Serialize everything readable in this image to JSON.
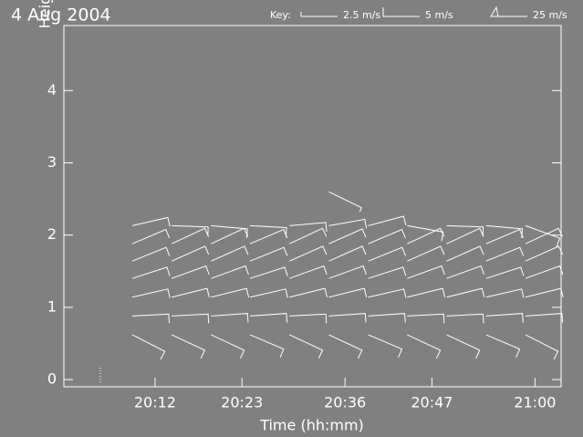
{
  "chart_data": {
    "type": "wind-barb",
    "title": "4 Aug 2004",
    "key_label": "Key:",
    "key": [
      {
        "label": "2.5 m/s",
        "speed": 2.5
      },
      {
        "label": "5 m/s",
        "speed": 5
      },
      {
        "label": "25 m/s",
        "speed": 25
      }
    ],
    "x_label": "Time (hh:mm)",
    "y_label": "Height (km ASL)",
    "xlim": [
      20.008,
      21.055
    ],
    "ylim": [
      -0.1,
      4.9
    ],
    "xticks": [
      {
        "value": 20.2,
        "label": "20:12"
      },
      {
        "value": 20.383,
        "label": "20:23"
      },
      {
        "value": 20.6,
        "label": "20:36"
      },
      {
        "value": 20.783,
        "label": "20:47"
      },
      {
        "value": 21.0,
        "label": "21:00"
      }
    ],
    "yticks": [
      0,
      1,
      2,
      3,
      4
    ],
    "color": "#ffffff",
    "x": [
      20.152,
      20.235,
      20.318,
      20.4,
      20.483,
      20.566,
      20.649,
      20.731,
      20.814,
      20.897,
      20.98
    ],
    "series": [
      {
        "height": 0.62,
        "direction": [
          117,
          115,
          115,
          113,
          115,
          115,
          113,
          115,
          115,
          113,
          117
        ],
        "speed": [
          5,
          5,
          5,
          5,
          5,
          5,
          5,
          5,
          5,
          5,
          5
        ]
      },
      {
        "height": 0.88,
        "direction": [
          87,
          87,
          86,
          86,
          87,
          86,
          86,
          87,
          87,
          86,
          86
        ],
        "speed": [
          5,
          5,
          5,
          5,
          5,
          5,
          5,
          5,
          5,
          5,
          5
        ]
      },
      {
        "height": 1.14,
        "direction": [
          77,
          76,
          76,
          77,
          76,
          76,
          77,
          76,
          76,
          77,
          76
        ],
        "speed": [
          5,
          5,
          5,
          5,
          5,
          5,
          5,
          5,
          5,
          5,
          5
        ]
      },
      {
        "height": 1.4,
        "direction": [
          72,
          70,
          70,
          72,
          70,
          70,
          72,
          70,
          70,
          72,
          70
        ],
        "speed": [
          5,
          5,
          5,
          5,
          5,
          5,
          5,
          5,
          5,
          5,
          5
        ]
      },
      {
        "height": 1.64,
        "direction": [
          68,
          66,
          66,
          68,
          66,
          66,
          68,
          66,
          66,
          68,
          66
        ],
        "speed": [
          5,
          5,
          5,
          5,
          5,
          5,
          5,
          5,
          5,
          5,
          5
        ]
      },
      {
        "height": 1.88,
        "direction": [
          67,
          65,
          65,
          67,
          65,
          66,
          67,
          65,
          65,
          67,
          65
        ],
        "speed": [
          5,
          5,
          5,
          5,
          5,
          5,
          5,
          5,
          5,
          5,
          5
        ]
      },
      {
        "height": 2.13,
        "direction": [
          77,
          92,
          95,
          93,
          85,
          80,
          75,
          100,
          92,
          95,
          110
        ],
        "speed": [
          5,
          5,
          5,
          5,
          5,
          5,
          5,
          5,
          5,
          5,
          5
        ]
      },
      {
        "height": 2.6,
        "direction": [
          null,
          null,
          null,
          null,
          null,
          116,
          null,
          null,
          null,
          null,
          null
        ],
        "speed": [
          null,
          null,
          null,
          null,
          null,
          2.5,
          null,
          null,
          null,
          null,
          null
        ]
      }
    ]
  }
}
